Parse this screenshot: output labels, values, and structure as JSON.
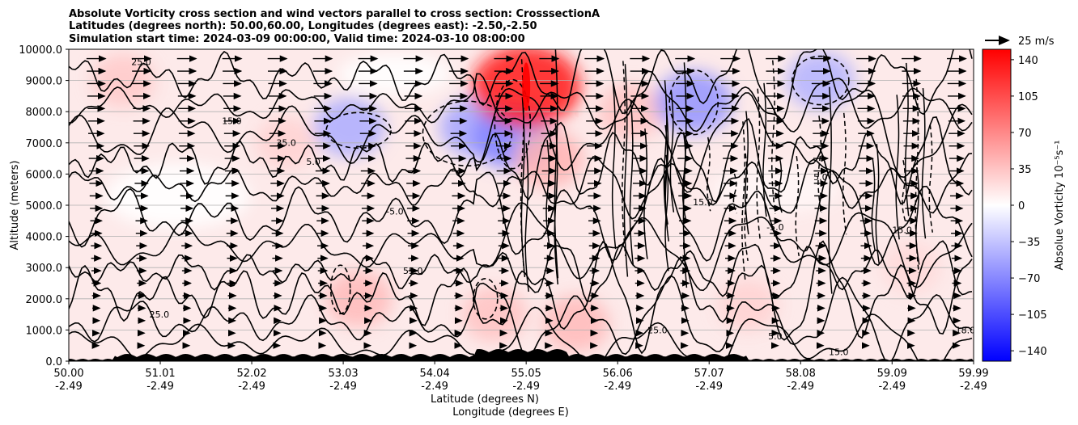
{
  "chart_data": {
    "type": "heatmap",
    "title": [
      "Absolute Vorticity cross section and wind vectors parallel to cross section: CrosssectionA",
      "Latitudes (degrees north): 50.00,60.00, Longitudes (degrees east): -2.50,-2.50",
      "Simulation start time: 2024-03-09 00:00:00, Valid time: 2024-03-10 08:00:00"
    ],
    "ylabel": "Altitude (meters)",
    "xlabel_1": "Latitude (degrees N)",
    "xlabel_2": "Longitude (degrees E)",
    "xlim": [
      50.0,
      59.99
    ],
    "ylim": [
      0,
      10000
    ],
    "grid": "horizontal",
    "y_ticks": [
      "0.0",
      "1000.0",
      "2000.0",
      "3000.0",
      "4000.0",
      "5000.0",
      "6000.0",
      "7000.0",
      "8000.0",
      "9000.0",
      "10000.0"
    ],
    "x_ticks": [
      {
        "lat": "50.00",
        "lon": "-2.49"
      },
      {
        "lat": "51.01",
        "lon": "-2.49"
      },
      {
        "lat": "52.02",
        "lon": "-2.49"
      },
      {
        "lat": "53.03",
        "lon": "-2.49"
      },
      {
        "lat": "54.04",
        "lon": "-2.49"
      },
      {
        "lat": "55.05",
        "lon": "-2.49"
      },
      {
        "lat": "56.06",
        "lon": "-2.49"
      },
      {
        "lat": "57.07",
        "lon": "-2.49"
      },
      {
        "lat": "58.08",
        "lon": "-2.49"
      },
      {
        "lat": "59.09",
        "lon": "-2.49"
      },
      {
        "lat": "59.99",
        "lon": "-2.49"
      }
    ],
    "colorbar": {
      "label": "Absolue Vorticity 10⁻⁵s⁻¹",
      "range": [
        -150,
        150
      ],
      "ticks": [
        "140",
        "105",
        "70",
        "35",
        "0",
        "−35",
        "−70",
        "−105",
        "−140"
      ],
      "colors": {
        "low": "#0000ff",
        "mid": "#ffffff",
        "high": "#ff0000"
      }
    },
    "quiver_key": "25 m/s",
    "contour_labels": [
      "25.0",
      "15.0",
      "5.0",
      "-5.0",
      "35.0",
      "55.0",
      "25.0",
      "15.0",
      "5.0",
      "-5.0",
      "15.0",
      "25.0",
      "5.0",
      "15.0",
      "18.0"
    ],
    "vorticity_features": [
      {
        "lat": 50.6,
        "alt": 9000,
        "value": 35
      },
      {
        "lat": 52.4,
        "alt": 7000,
        "value": 30
      },
      {
        "lat": 53.1,
        "alt": 7500,
        "value": -55
      },
      {
        "lat": 54.5,
        "alt": 7500,
        "value": -60
      },
      {
        "lat": 54.9,
        "alt": 7200,
        "value": -80
      },
      {
        "lat": 55.05,
        "alt": 8800,
        "value": 150
      },
      {
        "lat": 55.3,
        "alt": 6500,
        "value": 50
      },
      {
        "lat": 56.2,
        "alt": 8000,
        "value": 40
      },
      {
        "lat": 56.9,
        "alt": 8300,
        "value": -70
      },
      {
        "lat": 58.3,
        "alt": 9000,
        "value": -50
      },
      {
        "lat": 53.2,
        "alt": 2000,
        "value": 45
      },
      {
        "lat": 54.7,
        "alt": 1500,
        "value": 40
      },
      {
        "lat": 55.6,
        "alt": 1200,
        "value": 45
      },
      {
        "lat": 57.5,
        "alt": 1800,
        "value": 30
      },
      {
        "lat": 59.3,
        "alt": 3000,
        "value": 25
      }
    ]
  }
}
